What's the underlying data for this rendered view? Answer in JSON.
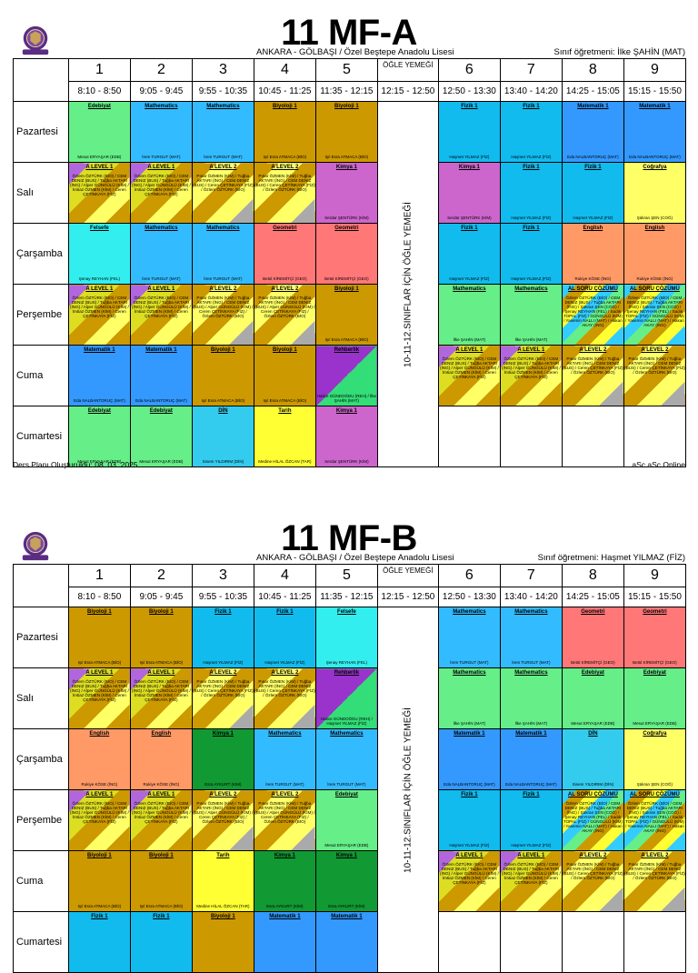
{
  "meta": {
    "school": "ANKARA - GÖLBAŞI / Özel Beştepe Anadolu Lisesi",
    "footer_left": "Ders Planı Oluşturuldu: 08. 03. 2025",
    "footer_right": "aSc aSc Online",
    "logo_icon": "school-crest-icon"
  },
  "periods": [
    {
      "num": "1",
      "time": "8:10 - 8:50"
    },
    {
      "num": "2",
      "time": "9:05 - 9:45"
    },
    {
      "num": "3",
      "time": "9:55 - 10:35"
    },
    {
      "num": "4",
      "time": "10:45 - 11:25"
    },
    {
      "num": "5",
      "time": "11:35 - 12:15"
    },
    {
      "num": "",
      "time": "12:15 - 12:50"
    },
    {
      "num": "6",
      "time": "12:50 - 13:30"
    },
    {
      "num": "7",
      "time": "13:40 - 14:20"
    },
    {
      "num": "8",
      "time": "14:25 - 15:05"
    },
    {
      "num": "9",
      "time": "15:15 - 15:50"
    }
  ],
  "lunch_header": "ÖĞLE YEMEĞİ",
  "lunch_vertical": "10-11-12.SINIFLAR İÇİN ÖĞLE YEMEĞİ",
  "days": [
    "Pazartesi",
    "Salı",
    "Çarşamba",
    "Perşembe",
    "Cuma",
    "Cumartesi"
  ],
  "colors": {
    "edebiyat": "#66ee88",
    "math": "#33bbff",
    "bio": "#cc9900",
    "fizik": "#11bbee",
    "matematik1": "#3399ff",
    "kimya": "#cc66cc",
    "cografya": "#ffff66",
    "felsefe": "#33eeee",
    "geometri": "#ff7777",
    "english": "#ff9966",
    "rehberlik": "#9933cc",
    "din": "#33ccee",
    "tarih": "#ffff33",
    "kimya_green": "#119933"
  },
  "sheets": [
    {
      "title": "11 MF-A",
      "class_teacher": "Sınıf öğretmeni: İlke ŞAHİN (MAT)",
      "rows": [
        [
          {
            "s": "Edebiyat",
            "t": "Mesut ERYAŞAR (EDB)",
            "c": "edebiyat"
          },
          {
            "s": "Mathematics",
            "t": "İrem TURGUT (MAT)",
            "c": "math"
          },
          {
            "s": "Mathematics",
            "t": "İrem TURGUT (MAT)",
            "c": "math"
          },
          {
            "s": "Biyoloji 1",
            "t": "Işıl Esra ATMACA (BİO)",
            "c": "bio"
          },
          {
            "s": "Biyoloji 1",
            "t": "Işıl Esra ATMACA (BİO)",
            "c": "bio"
          },
          {
            "s": "Fizik 1",
            "t": "Haşmet YILMAZ (FİZ)",
            "c": "fizik"
          },
          {
            "s": "Fizik 1",
            "t": "Haşmet YILMAZ (FİZ)",
            "c": "fizik"
          },
          {
            "s": "Matematik 1",
            "t": "Eda NALBANTORUÇ (MAT)",
            "c": "matematik1"
          },
          {
            "s": "Matematik 1",
            "t": "Eda NALBANTORUÇ (MAT)",
            "c": "matematik1"
          }
        ],
        [
          {
            "s": "A LEVEL 1",
            "list": "Özlem ÖZTÜRK (BİO) / CEM DENIZ (BUS) / Tuğba AKTARI (İNG) / Alper GÜNGÜLÜ (KİM) / İmtiaz ÖZMEN (KİM) / Ceren ÇETİNKAYA (FİZ)",
            "c": "alevel1"
          },
          {
            "s": "A LEVEL 1",
            "list": "Özlem ÖZTÜRK (BİO) / CEM DENIZ (BUS) / Tuğba AKTARI (İNG) / Alper GÜNGÜLÜ (KİM) / İmtiaz ÖZMEN (KİM) / Ceren ÇETİNKAYA (FİZ)",
            "c": "alevel1"
          },
          {
            "s": "A LEVEL 2",
            "list": "Pınar ÖZMEN (KİM) / Tuğba AKTARI (İNG) / CEM DENIZ (BUS) / Ceren ÇETİNKAYA (FİZ) / Özlem ÖZTÜRK (BİO)",
            "c": "alevel2"
          },
          {
            "s": "A LEVEL 2",
            "list": "Pınar ÖZMEN (KİM) / Tuğba AKTARI (İNG) / CEM DENIZ (BUS) / Ceren ÇETİNKAYA (FİZ) / Özlem ÖZTÜRK (BİO)",
            "c": "alevel2"
          },
          {
            "s": "Kimya 1",
            "t": "Serdar ŞENTÜRK (KİM)",
            "c": "kimya"
          },
          {
            "s": "Kimya 1",
            "t": "Serdar ŞENTÜRK (KİM)",
            "c": "kimya"
          },
          {
            "s": "Fizik 1",
            "t": "Haşmet YILMAZ (FİZ)",
            "c": "fizik"
          },
          {
            "s": "Fizik 1",
            "t": "Haşmet YILMAZ (FİZ)",
            "c": "fizik"
          },
          {
            "s": "Coğrafya",
            "t": "Şükran ŞEN (COĞ)",
            "c": "cografya"
          }
        ],
        [
          {
            "s": "Felsefe",
            "t": "Şenay REYHAN (FEL)",
            "c": "felsefe"
          },
          {
            "s": "Mathematics",
            "t": "İrem TURGUT (MAT)",
            "c": "math"
          },
          {
            "s": "Mathematics",
            "t": "İrem TURGUT (MAT)",
            "c": "math"
          },
          {
            "s": "Geometri",
            "t": "Betül KİREMİTÇİ (GEO)",
            "c": "geometri"
          },
          {
            "s": "Geometri",
            "t": "Betül KİREMİTÇİ (GEO)",
            "c": "geometri"
          },
          {
            "s": "Fizik 1",
            "t": "Haşmet YILMAZ (FİZ)",
            "c": "fizik"
          },
          {
            "s": "Fizik 1",
            "t": "Haşmet YILMAZ (FİZ)",
            "c": "fizik"
          },
          {
            "s": "English",
            "t": "Rukiye KÖSE (İNG)",
            "c": "english"
          },
          {
            "s": "English",
            "t": "Rukiye KÖSE (İNG)",
            "c": "english"
          }
        ],
        [
          {
            "s": "A LEVEL 1",
            "list": "Özlem ÖZTÜRK (BİO) / CEM DENIZ (BUS) / Tuğba AKTARI (İNG) / Alper GÜNGÜLÜ (KİM) / İmtiaz ÖZMEN (KİM) / Ceren ÇETİNKAYA (FİZ)",
            "c": "alevel1"
          },
          {
            "s": "A LEVEL 1",
            "list": "Özlem ÖZTÜRK (BİO) / CEM DENIZ (BUS) / Tuğba AKTARI (İNG) / Alper GÜNGÜLÜ (KİM) / İmtiaz ÖZMEN (KİM) / Ceren ÇETİNKAYA (FİZ)",
            "c": "alevel1"
          },
          {
            "s": "A LEVEL 2",
            "list": "Pınar ÖZMEN (KİM) / Tuğba AKTARI (İNG) / CEM DENIZ (BUS) / Alper GÜNGÜLÜ (KİM) / Ceren ÇETİNKAYA (FİZ) / Özlem ÖZTÜRK (BİO)",
            "c": "alevel2"
          },
          {
            "s": "A LEVEL 2",
            "list": "Pınar ÖZMEN (KİM) / Tuğba AKTARI (İNG) / CEM DENIZ (BUS) / Alper GÜNGÜLÜ (KİM) / Ceren ÇETİNKAYA (FİZ) / Özlem ÖZTÜRK (BİO)",
            "c": "alevel2"
          },
          {
            "s": "Biyoloji 1",
            "t": "Işıl Esra ATMACA (BİO)",
            "c": "bio"
          },
          {
            "s": "Mathematics",
            "t": "İlke ŞAHİN (MAT)",
            "c": "edebiyat"
          },
          {
            "s": "Mathematics",
            "t": "İlke ŞAHİN (MAT)",
            "c": "edebiyat"
          },
          {
            "s": "AL SORU ÇÖZÜMÜ",
            "list": "Özlem ÖZTÜRK (BİO) / CEM DENIZ (BUS) / Tuğba AKTARI (İNG) / Şükran ŞEN (COĞ) / Şenay REYHAN (FEL) / Sadık TOPAL (FİZ) / GÜNGÜLÜ (KİM) / Yasemin NALLI (MAT) / Hakan AKAY (İNG)",
            "c": "soru"
          },
          {
            "s": "AL SORU ÇÖZÜMÜ",
            "list": "Özlem ÖZTÜRK (BİO) / CEM DENIZ (BUS) / Tuğba AKTARI (İNG) / Şükran ŞEN (COĞ) / Şenay REYHAN (FEL) / Sadık TOPAL (FİZ) / GÜNGÜLÜ (KİM) / Yasemin NALLI (MAT) / Hakan AKAY (İNG)",
            "c": "soru"
          }
        ],
        [
          {
            "s": "Matematik 1",
            "t": "Eda NALBANTORUÇ (MAT)",
            "c": "matematik1"
          },
          {
            "s": "Matematik 1",
            "t": "Eda NALBANTORUÇ (MAT)",
            "c": "matematik1"
          },
          {
            "s": "Biyoloji 1",
            "t": "Işıl Esra ATMACA (BİO)",
            "c": "bio"
          },
          {
            "s": "Biyoloji 1",
            "t": "Işıl Esra ATMACA (BİO)",
            "c": "bio"
          },
          {
            "s": "Rehberlik",
            "t": "Hatice GÜNDOĞDU (REH) / İlke ŞAHİN (MAT)",
            "c": "rehberlik"
          },
          {
            "s": "A LEVEL 1",
            "list": "Özlem ÖZTÜRK (BİO) / CEM DENIZ (BUS) / Tuğba AKTARI (İNG) / Alper GÜNGÜLÜ (KİM) / İmtiaz ÖZMEN (KİM) / Ceren ÇETİNKAYA (FİZ)",
            "c": "alevel1"
          },
          {
            "s": "A LEVEL 1",
            "list": "Özlem ÖZTÜRK (BİO) / CEM DENIZ (BUS) / Tuğba AKTARI (İNG) / Alper GÜNGÜLÜ (KİM) / İmtiaz ÖZMEN (KİM) / Ceren ÇETİNKAYA (FİZ)",
            "c": "alevel1"
          },
          {
            "s": "A LEVEL 2",
            "list": "Pınar ÖZMEN (KİM) / Tuğba AKTARI (İNG) / CEM DENIZ (BUS) / Ceren ÇETİNKAYA (FİZ) / Özlem ÖZTÜRK (BİO)",
            "c": "alevel2"
          },
          {
            "s": "A LEVEL 2",
            "list": "Pınar ÖZMEN (KİM) / Tuğba AKTARI (İNG) / CEM DENIZ (BUS) / Ceren ÇETİNKAYA (FİZ) / Özlem ÖZTÜRK (BİO)",
            "c": "alevel2"
          }
        ],
        [
          {
            "s": "Edebiyat",
            "t": "Mesut ERYAŞAR (EDB)",
            "c": "edebiyat"
          },
          {
            "s": "Edebiyat",
            "t": "Mesut ERYAŞAR (EDB)",
            "c": "edebiyat"
          },
          {
            "s": "DİN",
            "t": "Sinem YILDIRIM (DİN)",
            "c": "din"
          },
          {
            "s": "Tarih",
            "t": "Medine HİLAL ÖZCAN (TAR)",
            "c": "tarih"
          },
          {
            "s": "Kimya 1",
            "t": "Serdar ŞENTÜRK (KİM)",
            "c": "kimya"
          },
          {
            "s": "",
            "t": "",
            "c": "empty"
          },
          {
            "s": "",
            "t": "",
            "c": "empty"
          },
          {
            "s": "",
            "t": "",
            "c": "empty"
          },
          {
            "s": "",
            "t": "",
            "c": "empty"
          }
        ]
      ]
    },
    {
      "title": "11 MF-B",
      "class_teacher": "Sınıf öğretmeni: Haşmet YILMAZ (FİZ)",
      "rows": [
        [
          {
            "s": "Biyoloji 1",
            "t": "Işıl Esra ATMACA (BİO)",
            "c": "bio"
          },
          {
            "s": "Biyoloji 1",
            "t": "Işıl Esra ATMACA (BİO)",
            "c": "bio"
          },
          {
            "s": "Fizik 1",
            "t": "Haşmet YILMAZ (FİZ)",
            "c": "fizik"
          },
          {
            "s": "Fizik 1",
            "t": "Haşmet YILMAZ (FİZ)",
            "c": "fizik"
          },
          {
            "s": "Felsefe",
            "t": "Şenay REYHAN (FEL)",
            "c": "felsefe"
          },
          {
            "s": "Mathematics",
            "t": "İrem TURGUT (MAT)",
            "c": "math"
          },
          {
            "s": "Mathematics",
            "t": "İrem TURGUT (MAT)",
            "c": "math"
          },
          {
            "s": "Geometri",
            "t": "Betül KİREMİTÇİ (GEO)",
            "c": "geometri"
          },
          {
            "s": "Geometri",
            "t": "Betül KİREMİTÇİ (GEO)",
            "c": "geometri"
          }
        ],
        [
          {
            "s": "A LEVEL 1",
            "list": "Özlem ÖZTÜRK (BİO) / CEM DENIZ (BUS) / Tuğba AKTARI (İNG) / Alper GÜNGÜLÜ (KİM) / İmtiaz ÖZMEN (KİM) / Ceren ÇETİNKAYA (FİZ)",
            "c": "alevel1"
          },
          {
            "s": "A LEVEL 1",
            "list": "Özlem ÖZTÜRK (BİO) / CEM DENIZ (BUS) / Tuğba AKTARI (İNG) / Alper GÜNGÜLÜ (KİM) / İmtiaz ÖZMEN (KİM) / Ceren ÇETİNKAYA (FİZ)",
            "c": "alevel1"
          },
          {
            "s": "A LEVEL 2",
            "list": "Pınar ÖZMEN (KİM) / Tuğba AKTARI (İNG) / CEM DENIZ (BUS) / Ceren ÇETİNKAYA (FİZ) / Özlem ÖZTÜRK (BİO)",
            "c": "alevel2"
          },
          {
            "s": "A LEVEL 2",
            "list": "Pınar ÖZMEN (KİM) / Tuğba AKTARI (İNG) / CEM DENIZ (BUS) / Ceren ÇETİNKAYA (FİZ) / Özlem ÖZTÜRK (BİO)",
            "c": "alevel2"
          },
          {
            "s": "Rehberlik",
            "t": "Hatice GÜNDOĞDU (REH) / Haşmet YILMAZ (FİZ)",
            "c": "rehberlik"
          },
          {
            "s": "Mathematics",
            "t": "İlke ŞAHİN (MAT)",
            "c": "edebiyat"
          },
          {
            "s": "Mathematics",
            "t": "İlke ŞAHİN (MAT)",
            "c": "edebiyat"
          },
          {
            "s": "Edebiyat",
            "t": "Mesut ERYAŞAR (EDB)",
            "c": "edebiyat"
          },
          {
            "s": "Edebiyat",
            "t": "Mesut ERYAŞAR (EDB)",
            "c": "edebiyat"
          }
        ],
        [
          {
            "s": "English",
            "t": "Rukiye KÖSE (İNG)",
            "c": "english"
          },
          {
            "s": "English",
            "t": "Rukiye KÖSE (İNG)",
            "c": "english"
          },
          {
            "s": "Kimya 1",
            "t": "Esra AYKURT (KİM)",
            "c": "kimya_green"
          },
          {
            "s": "Mathematics",
            "t": "İrem TURGUT (MAT)",
            "c": "math"
          },
          {
            "s": "Mathematics",
            "t": "İrem TURGUT (MAT)",
            "c": "math"
          },
          {
            "s": "Matematik 1",
            "t": "Eda NALBANTORUÇ (MAT)",
            "c": "matematik1"
          },
          {
            "s": "Matematik 1",
            "t": "Eda NALBANTORUÇ (MAT)",
            "c": "matematik1"
          },
          {
            "s": "DİN",
            "t": "Sinem YILDIRIM (DİN)",
            "c": "din"
          },
          {
            "s": "Coğrafya",
            "t": "Şükran ŞEN (COĞ)",
            "c": "cografya"
          }
        ],
        [
          {
            "s": "A LEVEL 1",
            "list": "Özlem ÖZTÜRK (BİO) / CEM DENIZ (BUS) / Tuğba AKTARI (İNG) / Alper GÜNGÜLÜ (KİM) / İmtiaz ÖZMEN (KİM) / Ceren ÇETİNKAYA (FİZ)",
            "c": "alevel1"
          },
          {
            "s": "A LEVEL 1",
            "list": "Özlem ÖZTÜRK (BİO) / CEM DENIZ (BUS) / Tuğba AKTARI (İNG) / Alper GÜNGÜLÜ (KİM) / İmtiaz ÖZMEN (KİM) / Ceren ÇETİNKAYA (FİZ)",
            "c": "alevel1"
          },
          {
            "s": "A LEVEL 2",
            "list": "Pınar ÖZMEN (KİM) / Tuğba AKTARI (İNG) / CEM DENIZ (BUS) / Alper GÜNGÜLÜ (KİM) / Ceren ÇETİNKAYA (FİZ) / Özlem ÖZTÜRK (BİO)",
            "c": "alevel2"
          },
          {
            "s": "A LEVEL 2",
            "list": "Pınar ÖZMEN (KİM) / Tuğba AKTARI (İNG) / CEM DENIZ (BUS) / Alper GÜNGÜLÜ (KİM) / Ceren ÇETİNKAYA (FİZ) / Özlem ÖZTÜRK (BİO)",
            "c": "alevel2"
          },
          {
            "s": "Edebiyat",
            "t": "Mesut ERYAŞAR (EDB)",
            "c": "edebiyat"
          },
          {
            "s": "Fizik 1",
            "t": "Haşmet YILMAZ (FİZ)",
            "c": "fizik"
          },
          {
            "s": "Fizik 1",
            "t": "Haşmet YILMAZ (FİZ)",
            "c": "fizik"
          },
          {
            "s": "AL SORU ÇÖZÜMÜ",
            "list": "Özlem ÖZTÜRK (BİO) / CEM DENIZ (BUS) / Tuğba AKTARI (İNG) / Şükran ŞEN (COĞ) / Şenay REYHAN (FEL) / Sadık TOPAL (FİZ) / GÜNGÜLÜ (KİM) / Yasemin NALLI (MAT) / Hakan AKAY (İNG)",
            "c": "soru"
          },
          {
            "s": "AL SORU ÇÖZÜMÜ",
            "list": "Özlem ÖZTÜRK (BİO) / CEM DENIZ (BUS) / Tuğba AKTARI (İNG) / Şükran ŞEN (COĞ) / Şenay REYHAN (FEL) / Sadık TOPAL (FİZ) / GÜNGÜLÜ (KİM) / Yasemin NALLI (MAT) / Hakan AKAY (İNG)",
            "c": "soru"
          }
        ],
        [
          {
            "s": "Biyoloji 1",
            "t": "Işıl Esra ATMACA (BİO)",
            "c": "bio"
          },
          {
            "s": "Biyoloji 1",
            "t": "Işıl Esra ATMACA (BİO)",
            "c": "bio"
          },
          {
            "s": "Tarih",
            "t": "Medine HİLAL ÖZCAN (TAR)",
            "c": "tarih"
          },
          {
            "s": "Kimya 1",
            "t": "Esra AYKURT (KİM)",
            "c": "kimya_green"
          },
          {
            "s": "Kimya 1",
            "t": "Esra AYKURT (KİM)",
            "c": "kimya_green"
          },
          {
            "s": "A LEVEL 1",
            "list": "Özlem ÖZTÜRK (BİO) / CEM DENIZ (BUS) / Tuğba AKTARI (İNG) / Alper GÜNGÜLÜ (KİM) / İmtiaz ÖZMEN (KİM) / Ceren ÇETİNKAYA (FİZ)",
            "c": "alevel1"
          },
          {
            "s": "A LEVEL 1",
            "list": "Özlem ÖZTÜRK (BİO) / CEM DENIZ (BUS) / Tuğba AKTARI (İNG) / Alper GÜNGÜLÜ (KİM) / İmtiaz ÖZMEN (KİM) / Ceren ÇETİNKAYA (FİZ)",
            "c": "alevel1"
          },
          {
            "s": "A LEVEL 2",
            "list": "Pınar ÖZMEN (KİM) / Tuğba AKTARI (İNG) / CEM DENIZ (BUS) / Ceren ÇETİNKAYA (FİZ) / Özlem ÖZTÜRK (BİO)",
            "c": "alevel2"
          },
          {
            "s": "A LEVEL 2",
            "list": "Pınar ÖZMEN (KİM) / Tuğba AKTARI (İNG) / CEM DENIZ (BUS) / Ceren ÇETİNKAYA (FİZ) / Özlem ÖZTÜRK (BİO)",
            "c": "alevel2"
          }
        ],
        [
          {
            "s": "Fizik 1",
            "t": "",
            "c": "fizik"
          },
          {
            "s": "Fizik 1",
            "t": "",
            "c": "fizik"
          },
          {
            "s": "Biyoloji 1",
            "t": "",
            "c": "bio"
          },
          {
            "s": "Matematik 1",
            "t": "",
            "c": "matematik1"
          },
          {
            "s": "Matematik 1",
            "t": "",
            "c": "matematik1"
          },
          {
            "s": "",
            "t": "",
            "c": "empty"
          },
          {
            "s": "",
            "t": "",
            "c": "empty"
          },
          {
            "s": "",
            "t": "",
            "c": "empty"
          },
          {
            "s": "",
            "t": "",
            "c": "empty"
          }
        ]
      ]
    }
  ]
}
